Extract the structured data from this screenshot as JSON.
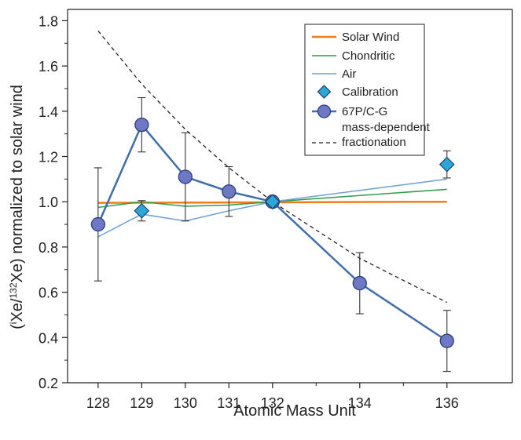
{
  "chart_data": {
    "type": "line",
    "xlabel": "Atomic Mass Unit",
    "ylabel_parts": [
      "(",
      "i",
      "Xe/",
      "132",
      "Xe) normalized to solar wind"
    ],
    "xlim": [
      127.3,
      137.5
    ],
    "ylim": [
      0.2,
      1.85
    ],
    "x_ticks": [
      128,
      129,
      130,
      131,
      132,
      134,
      136
    ],
    "y_ticks": [
      0.2,
      0.4,
      0.6,
      0.8,
      1.0,
      1.2,
      1.4,
      1.6,
      1.8
    ],
    "y_tick_labels": [
      "0.2",
      "0.4",
      "0.6",
      "0.8",
      "1.0",
      "1.2",
      "1.4",
      "1.6",
      "1.8"
    ],
    "grid": false,
    "legend_position": "top-right",
    "series": [
      {
        "name": "Solar Wind",
        "style": "line",
        "color": "#f07d1a",
        "x": [
          128,
          136
        ],
        "y": [
          0.995,
          1.0
        ]
      },
      {
        "name": "Chondritic",
        "style": "line",
        "color": "#2e9c4a",
        "x": [
          128,
          129,
          130,
          131,
          132,
          136
        ],
        "y": [
          0.975,
          1.0,
          0.98,
          0.985,
          1.0,
          1.055
        ]
      },
      {
        "name": "Air",
        "style": "line",
        "color": "#6e9fd2",
        "x": [
          128,
          129,
          130,
          131,
          132,
          136
        ],
        "y": [
          0.845,
          0.945,
          0.915,
          0.96,
          1.0,
          1.1
        ]
      },
      {
        "name": "Calibration",
        "style": "diamond",
        "color": "#2aa8d8",
        "x": [
          129,
          132,
          136
        ],
        "y": [
          0.96,
          1.0,
          1.165
        ],
        "err": [
          0.045,
          0.0,
          0.06
        ]
      },
      {
        "name": "67P/C-G",
        "style": "line-circle",
        "color": "#3f6eac",
        "fill": "#6f78c4",
        "x": [
          128,
          129,
          130,
          131,
          132,
          134,
          136
        ],
        "y": [
          0.9,
          1.34,
          1.11,
          1.045,
          1.0,
          0.64,
          0.385
        ],
        "err": [
          0.25,
          0.12,
          0.195,
          0.11,
          0.0,
          0.135,
          0.135
        ]
      },
      {
        "name_lines": [
          "mass-dependent",
          "fractionation"
        ],
        "style": "dashed",
        "color": "#222222",
        "x": [
          128,
          129,
          130,
          131,
          132,
          134,
          136
        ],
        "y": [
          1.755,
          1.52,
          1.32,
          1.15,
          1.0,
          0.75,
          0.555
        ]
      }
    ]
  }
}
